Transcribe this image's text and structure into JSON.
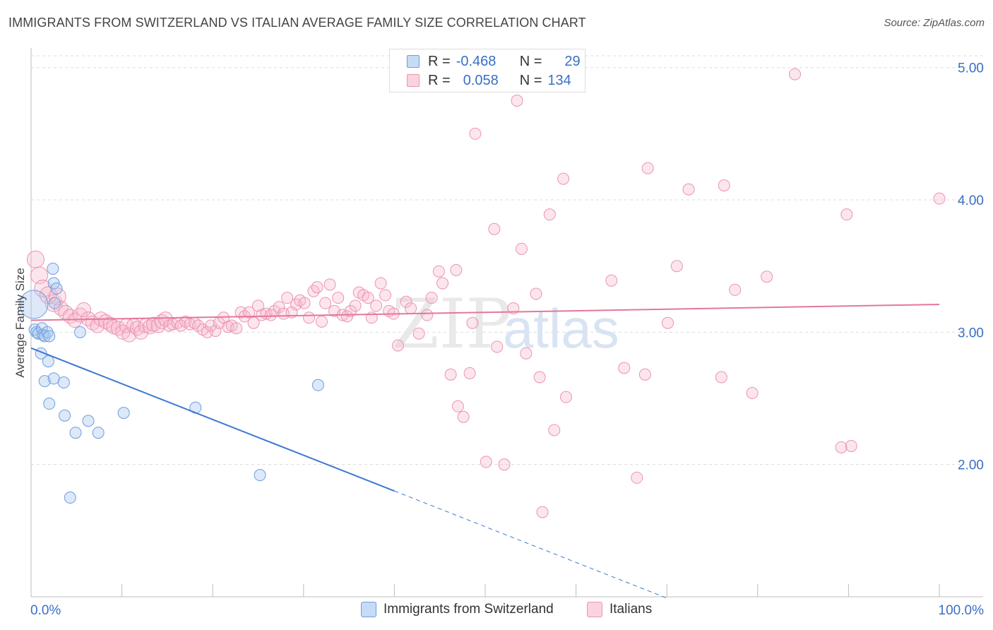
{
  "title": "IMMIGRANTS FROM SWITZERLAND VS ITALIAN AVERAGE FAMILY SIZE CORRELATION CHART",
  "source": "Source: ZipAtlas.com",
  "colors": {
    "blue": "#3a79d1",
    "blue_fill": "#a9c7ee",
    "pink": "#e4779b",
    "pink_fill": "#f5b8cc",
    "accent_text": "#3a6fc4"
  },
  "legend": {
    "rows": [
      {
        "r_label": "R =",
        "r_value": "-0.468",
        "n_label": "N =",
        "n_value": "29"
      },
      {
        "r_label": "R =",
        "r_value": "0.058",
        "n_label": "N =",
        "n_value": "134"
      }
    ]
  },
  "bottom_legend": {
    "blue": "Immigrants from Switzerland",
    "pink": "Italians"
  },
  "chart_data": {
    "type": "scatter",
    "ylabel": "Average Family Size",
    "xlim": [
      0,
      100
    ],
    "ylim": [
      1.0,
      5.1
    ],
    "x_tick_labels": [
      "0.0%",
      "100.0%"
    ],
    "y_ticks": [
      2.0,
      3.0,
      4.0,
      5.0
    ],
    "y_tick_labels": [
      "2.00",
      "3.00",
      "4.00",
      "5.00"
    ],
    "grid": "horizontal-dashed",
    "series": [
      {
        "name": "Immigrants from Switzerland",
        "color": "#3a79d1",
        "trend": {
          "x0": 0.0,
          "y0": 2.88,
          "x1": 40.0,
          "y1": 1.8,
          "dash_to_x": 70.0
        },
        "points": [
          [
            0.3,
            3.21
          ],
          [
            0.4,
            3.02
          ],
          [
            0.6,
            3.0
          ],
          [
            0.8,
            2.99
          ],
          [
            1.2,
            3.03
          ],
          [
            1.3,
            2.98
          ],
          [
            1.5,
            2.97
          ],
          [
            1.1,
            2.84
          ],
          [
            1.8,
            3.0
          ],
          [
            2.0,
            2.97
          ],
          [
            2.4,
            3.48
          ],
          [
            2.5,
            3.37
          ],
          [
            2.8,
            3.33
          ],
          [
            2.6,
            3.22
          ],
          [
            1.9,
            2.78
          ],
          [
            1.5,
            2.63
          ],
          [
            2.5,
            2.65
          ],
          [
            3.6,
            2.62
          ],
          [
            2.0,
            2.46
          ],
          [
            3.7,
            2.37
          ],
          [
            5.4,
            3.0
          ],
          [
            4.9,
            2.24
          ],
          [
            6.3,
            2.33
          ],
          [
            7.4,
            2.24
          ],
          [
            10.2,
            2.39
          ],
          [
            18.1,
            2.43
          ],
          [
            25.2,
            1.92
          ],
          [
            31.6,
            2.6
          ],
          [
            4.3,
            1.75
          ]
        ]
      },
      {
        "name": "Italians",
        "color": "#e4779b",
        "trend": {
          "x0": 0.0,
          "y0": 3.09,
          "x1": 100.0,
          "y1": 3.21
        },
        "points": [
          [
            0.5,
            3.55
          ],
          [
            0.9,
            3.43
          ],
          [
            1.3,
            3.33
          ],
          [
            1.9,
            3.28
          ],
          [
            2.5,
            3.22
          ],
          [
            2.9,
            3.27
          ],
          [
            3.3,
            3.18
          ],
          [
            3.8,
            3.15
          ],
          [
            4.3,
            3.12
          ],
          [
            4.8,
            3.09
          ],
          [
            5.4,
            3.13
          ],
          [
            5.8,
            3.17
          ],
          [
            6.3,
            3.1
          ],
          [
            6.8,
            3.07
          ],
          [
            7.3,
            3.05
          ],
          [
            7.7,
            3.1
          ],
          [
            8.2,
            3.08
          ],
          [
            8.7,
            3.06
          ],
          [
            9.1,
            3.04
          ],
          [
            9.6,
            3.03
          ],
          [
            10.1,
            3.0
          ],
          [
            10.5,
            3.05
          ],
          [
            10.8,
            2.98
          ],
          [
            11.3,
            3.05
          ],
          [
            11.7,
            3.03
          ],
          [
            12.1,
            3.0
          ],
          [
            12.6,
            3.05
          ],
          [
            13.1,
            3.04
          ],
          [
            13.5,
            3.06
          ],
          [
            14.0,
            3.05
          ],
          [
            14.4,
            3.08
          ],
          [
            14.8,
            3.1
          ],
          [
            15.2,
            3.05
          ],
          [
            15.6,
            3.06
          ],
          [
            16.1,
            3.07
          ],
          [
            16.5,
            3.05
          ],
          [
            17.0,
            3.08
          ],
          [
            17.5,
            3.06
          ],
          [
            18.0,
            3.07
          ],
          [
            18.4,
            3.05
          ],
          [
            18.9,
            3.02
          ],
          [
            19.4,
            3.0
          ],
          [
            19.8,
            3.05
          ],
          [
            20.3,
            3.01
          ],
          [
            20.7,
            3.07
          ],
          [
            21.2,
            3.11
          ],
          [
            21.7,
            3.04
          ],
          [
            22.1,
            3.05
          ],
          [
            22.6,
            3.03
          ],
          [
            23.1,
            3.15
          ],
          [
            23.5,
            3.12
          ],
          [
            24.0,
            3.15
          ],
          [
            24.5,
            3.07
          ],
          [
            25.0,
            3.2
          ],
          [
            25.4,
            3.13
          ],
          [
            25.9,
            3.14
          ],
          [
            26.4,
            3.13
          ],
          [
            26.8,
            3.16
          ],
          [
            27.3,
            3.19
          ],
          [
            27.8,
            3.14
          ],
          [
            28.2,
            3.26
          ],
          [
            28.7,
            3.15
          ],
          [
            29.2,
            3.21
          ],
          [
            29.6,
            3.24
          ],
          [
            30.1,
            3.22
          ],
          [
            30.6,
            3.11
          ],
          [
            31.1,
            3.31
          ],
          [
            31.5,
            3.34
          ],
          [
            32.0,
            3.08
          ],
          [
            32.4,
            3.22
          ],
          [
            32.9,
            3.36
          ],
          [
            33.4,
            3.16
          ],
          [
            33.8,
            3.26
          ],
          [
            34.3,
            3.13
          ],
          [
            34.8,
            3.12
          ],
          [
            35.2,
            3.16
          ],
          [
            35.7,
            3.2
          ],
          [
            36.1,
            3.3
          ],
          [
            36.6,
            3.28
          ],
          [
            37.1,
            3.26
          ],
          [
            37.5,
            3.11
          ],
          [
            38.0,
            3.2
          ],
          [
            38.5,
            3.37
          ],
          [
            39.0,
            3.28
          ],
          [
            39.4,
            3.16
          ],
          [
            39.9,
            3.14
          ],
          [
            40.4,
            2.9
          ],
          [
            41.3,
            3.23
          ],
          [
            41.8,
            3.18
          ],
          [
            42.7,
            2.99
          ],
          [
            43.6,
            3.13
          ],
          [
            44.1,
            3.26
          ],
          [
            44.9,
            3.46
          ],
          [
            45.3,
            3.37
          ],
          [
            46.2,
            2.68
          ],
          [
            46.8,
            3.47
          ],
          [
            47.0,
            2.44
          ],
          [
            47.6,
            2.36
          ],
          [
            48.3,
            2.69
          ],
          [
            48.6,
            3.07
          ],
          [
            48.9,
            4.5
          ],
          [
            50.1,
            2.02
          ],
          [
            51.0,
            3.78
          ],
          [
            51.3,
            2.89
          ],
          [
            52.1,
            2.0
          ],
          [
            53.1,
            3.18
          ],
          [
            53.5,
            4.75
          ],
          [
            54.0,
            3.63
          ],
          [
            54.5,
            2.84
          ],
          [
            55.6,
            3.29
          ],
          [
            56.0,
            2.66
          ],
          [
            56.3,
            1.64
          ],
          [
            57.1,
            3.89
          ],
          [
            57.6,
            2.26
          ],
          [
            58.6,
            4.16
          ],
          [
            58.9,
            2.51
          ],
          [
            63.9,
            3.39
          ],
          [
            65.3,
            2.73
          ],
          [
            66.7,
            1.9
          ],
          [
            67.6,
            2.68
          ],
          [
            67.9,
            4.24
          ],
          [
            70.1,
            3.07
          ],
          [
            71.1,
            3.5
          ],
          [
            72.4,
            4.08
          ],
          [
            76.0,
            2.66
          ],
          [
            76.3,
            4.11
          ],
          [
            77.5,
            3.32
          ],
          [
            79.4,
            2.54
          ],
          [
            81.0,
            3.42
          ],
          [
            84.1,
            4.95
          ],
          [
            89.2,
            2.13
          ],
          [
            90.3,
            2.14
          ],
          [
            89.8,
            3.89
          ],
          [
            100.0,
            4.01
          ]
        ]
      }
    ]
  }
}
